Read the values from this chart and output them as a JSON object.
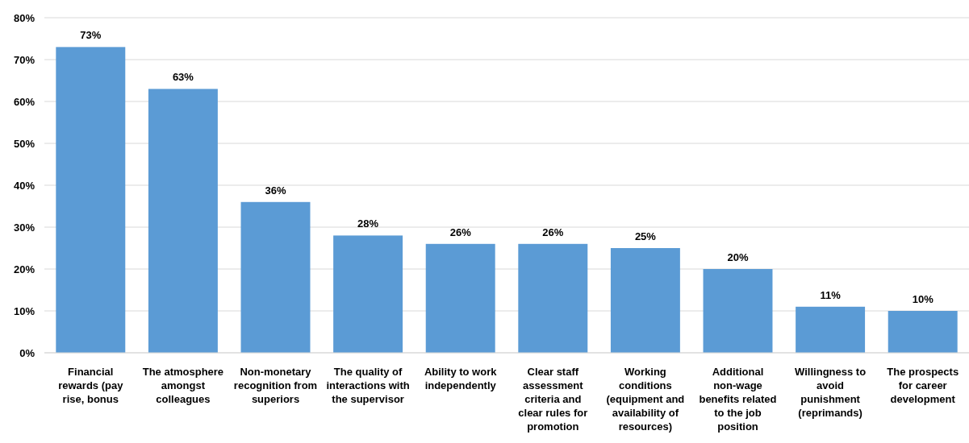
{
  "chart_data": {
    "type": "bar",
    "categories": [
      "Financial rewards (pay rise, bonus",
      "The atmosphere amongst colleagues",
      "Non-monetary recognition from superiors",
      "The quality of interactions with the supervisor",
      "Ability to work independently",
      "Clear staff assessment criteria and clear rules for promotion",
      "Working conditions (equipment and availability of resources)",
      "Additional non-wage benefits related to the job position",
      "Willingness to avoid punishment (reprimands)",
      "The prospects for career development"
    ],
    "values": [
      73,
      63,
      36,
      28,
      26,
      26,
      25,
      20,
      11,
      10
    ],
    "value_labels": [
      "73%",
      "63%",
      "36%",
      "28%",
      "26%",
      "26%",
      "25%",
      "20%",
      "11%",
      "10%"
    ],
    "color": "#5b9bd5",
    "ylim": [
      0,
      80
    ],
    "yticks": [
      {
        "value": 0,
        "label": "0%"
      },
      {
        "value": 10,
        "label": "10%"
      },
      {
        "value": 20,
        "label": "20%"
      },
      {
        "value": 30,
        "label": "30%"
      },
      {
        "value": 40,
        "label": "40%"
      },
      {
        "value": 50,
        "label": "50%"
      },
      {
        "value": 60,
        "label": "60%"
      },
      {
        "value": 70,
        "label": "70%"
      },
      {
        "value": 80,
        "label": "80%"
      }
    ],
    "grid": "y"
  }
}
